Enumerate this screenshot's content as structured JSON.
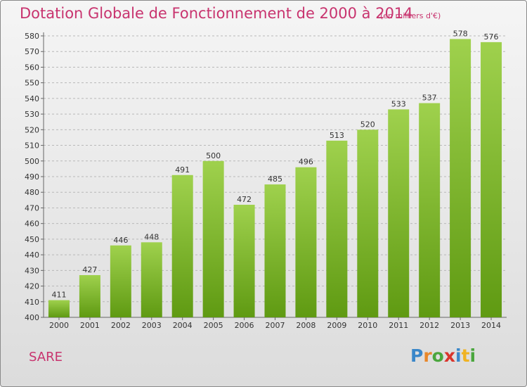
{
  "title": "Dotation Globale de Fonctionnement de 2000 à 2014",
  "subtitle": "(en milliers d'€)",
  "commune": "SARE",
  "logo": {
    "text": "Proxiti",
    "letters": [
      {
        "ch": "P",
        "color": "#3a87c9"
      },
      {
        "ch": "r",
        "color": "#e8872a"
      },
      {
        "ch": "o",
        "color": "#4aa63d"
      },
      {
        "ch": "x",
        "color": "#d9342b"
      },
      {
        "ch": "i",
        "color": "#3a87c9"
      },
      {
        "ch": "t",
        "color": "#f0b323"
      },
      {
        "ch": "i",
        "color": "#4aa63d"
      }
    ]
  },
  "colors": {
    "title": "#c8336e",
    "bar_top": "#9fd14d",
    "bar_bottom": "#5f9a12",
    "grid": "#b8b8b8"
  },
  "chart_data": {
    "type": "bar",
    "categories": [
      "2000",
      "2001",
      "2002",
      "2003",
      "2004",
      "2005",
      "2006",
      "2007",
      "2008",
      "2009",
      "2010",
      "2011",
      "2012",
      "2013",
      "2014"
    ],
    "values": [
      411,
      427,
      446,
      448,
      491,
      500,
      472,
      485,
      496,
      513,
      520,
      533,
      537,
      578,
      576
    ],
    "ylim": [
      400,
      580
    ],
    "yticks": [
      400,
      410,
      420,
      430,
      440,
      450,
      460,
      470,
      480,
      490,
      500,
      510,
      520,
      530,
      540,
      550,
      560,
      570,
      580
    ],
    "grid": true,
    "grid_style": "dashed-horizontal",
    "data_labels": true
  }
}
